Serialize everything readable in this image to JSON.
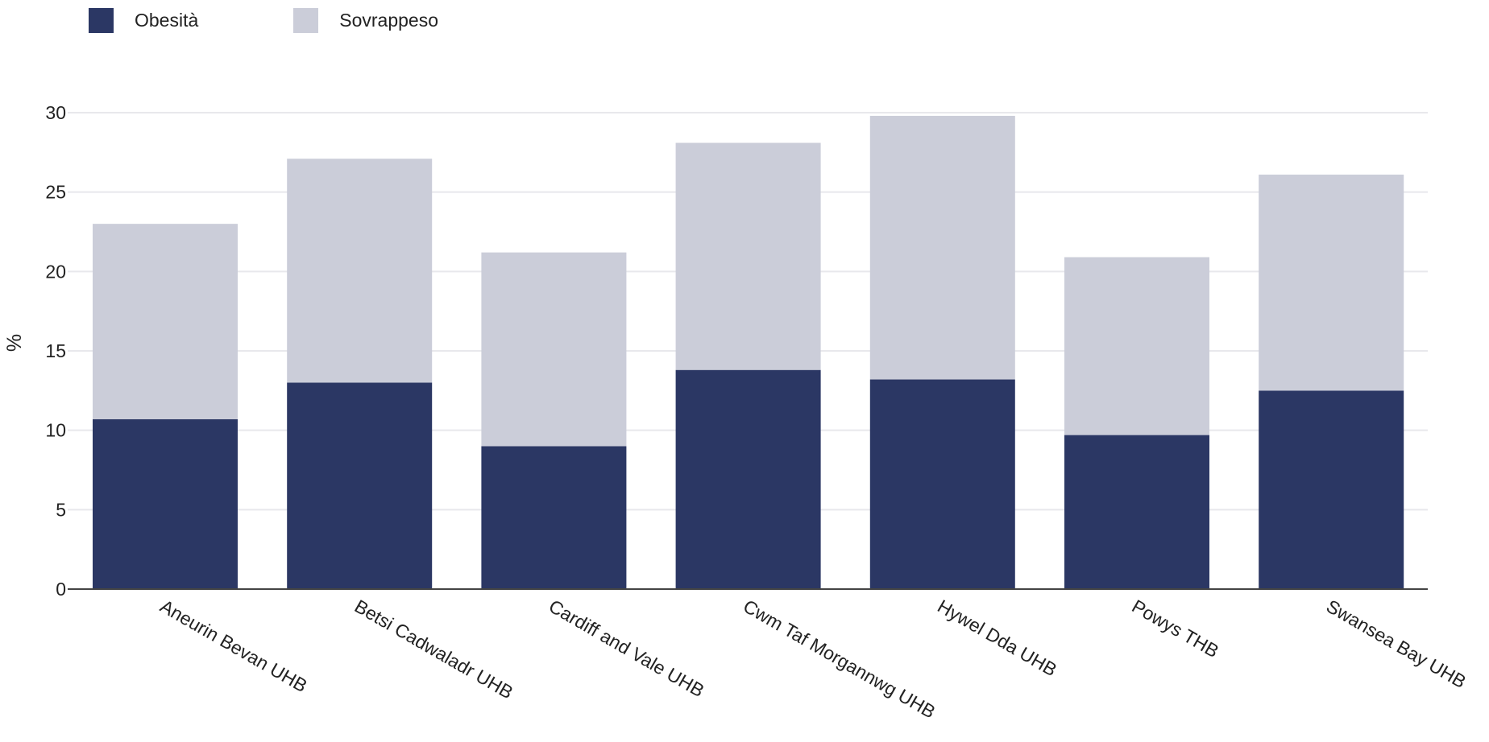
{
  "chart_data": {
    "type": "bar",
    "stacked": true,
    "categories": [
      "Aneurin Bevan UHB",
      "Betsi Cadwaladr UHB",
      "Cardiff and Vale UHB",
      "Cwm Taf Morgannwg UHB",
      "Hywel Dda UHB",
      "Powys THB",
      "Swansea Bay UHB"
    ],
    "series": [
      {
        "name": "Obesità",
        "color": "#2b3764",
        "values": [
          10.7,
          13.0,
          9.0,
          13.8,
          13.2,
          9.7,
          12.5
        ]
      },
      {
        "name": "Sovrappeso",
        "color": "#cbcdd9",
        "values": [
          12.3,
          14.1,
          12.2,
          14.3,
          16.6,
          11.2,
          13.6
        ]
      }
    ],
    "title": "",
    "xlabel": "",
    "ylabel": "%",
    "ylim": [
      0,
      30
    ],
    "yticks": [
      0,
      5,
      10,
      15,
      20,
      25,
      30
    ],
    "grid": true,
    "legend_position": "top-left"
  }
}
